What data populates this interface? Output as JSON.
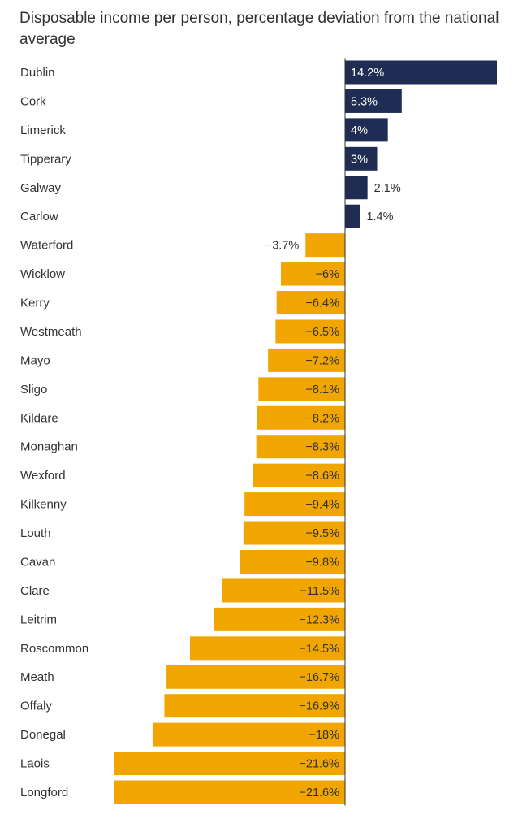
{
  "chart_data": {
    "type": "bar",
    "orientation": "horizontal",
    "title": "Disposable income per person, percentage deviation from the national average",
    "xlabel": "",
    "ylabel": "",
    "unit": "%",
    "categories": [
      "Dublin",
      "Cork",
      "Limerick",
      "Tipperary",
      "Galway",
      "Carlow",
      "Waterford",
      "Wicklow",
      "Kerry",
      "Westmeath",
      "Mayo",
      "Sligo",
      "Kildare",
      "Monaghan",
      "Wexford",
      "Kilkenny",
      "Louth",
      "Cavan",
      "Clare",
      "Leitrim",
      "Roscommon",
      "Meath",
      "Offaly",
      "Donegal",
      "Laois",
      "Longford"
    ],
    "values": [
      14.2,
      5.3,
      4,
      3,
      2.1,
      1.4,
      -3.7,
      -6,
      -6.4,
      -6.5,
      -7.2,
      -8.1,
      -8.2,
      -8.3,
      -8.6,
      -9.4,
      -9.5,
      -9.8,
      -11.5,
      -12.3,
      -14.5,
      -16.7,
      -16.9,
      -18,
      -21.6,
      -21.6
    ],
    "labels": [
      "14.2%",
      "5.3%",
      "4%",
      "3%",
      "2.1%",
      "1.4%",
      "−3.7%",
      "−6%",
      "−6.4%",
      "−6.5%",
      "−7.2%",
      "−8.1%",
      "−8.2%",
      "−8.3%",
      "−8.6%",
      "−9.4%",
      "−9.5%",
      "−9.8%",
      "−11.5%",
      "−12.3%",
      "−14.5%",
      "−16.7%",
      "−16.9%",
      "−18%",
      "−21.6%",
      "−21.6%"
    ],
    "xlim": [
      -21.6,
      14.2
    ],
    "grid": false,
    "legend": "none",
    "colors": {
      "positive": "#1f2d54",
      "negative": "#f0a500",
      "baseline": "#333333"
    }
  }
}
